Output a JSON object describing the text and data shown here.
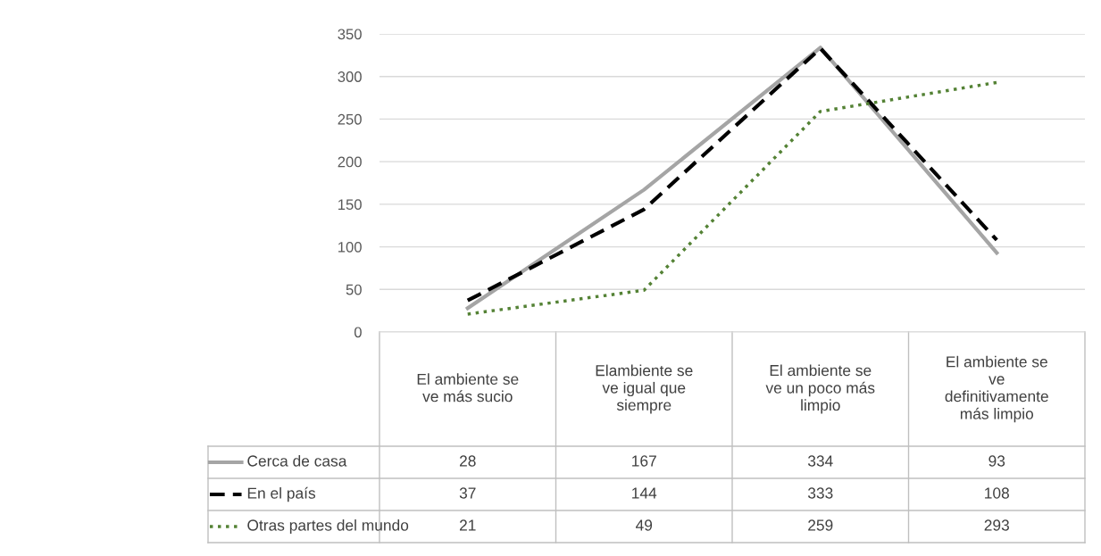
{
  "chart_data": {
    "type": "line",
    "categories": [
      "El ambiente se ve más sucio",
      "Elambiente se ve igual que siempre",
      "El ambiente se ve un poco más limpio",
      "El ambiente se ve definitivamente más limpio"
    ],
    "series": [
      {
        "name": "Cerca de casa",
        "color": "#a5a5a5",
        "line_style": "solid",
        "values": [
          28,
          167,
          334,
          93
        ]
      },
      {
        "name": "En el país",
        "color": "#000000",
        "line_style": "dashed",
        "values": [
          37,
          144,
          333,
          108
        ]
      },
      {
        "name": "Otras partes del mundo",
        "color": "#548235",
        "line_style": "dotted",
        "values": [
          21,
          49,
          259,
          293
        ]
      }
    ],
    "ylim": [
      0,
      350
    ],
    "yticks": [
      0,
      50,
      100,
      150,
      200,
      250,
      300,
      350
    ],
    "grid": "y",
    "legend": "bottom",
    "data_labels": true
  }
}
